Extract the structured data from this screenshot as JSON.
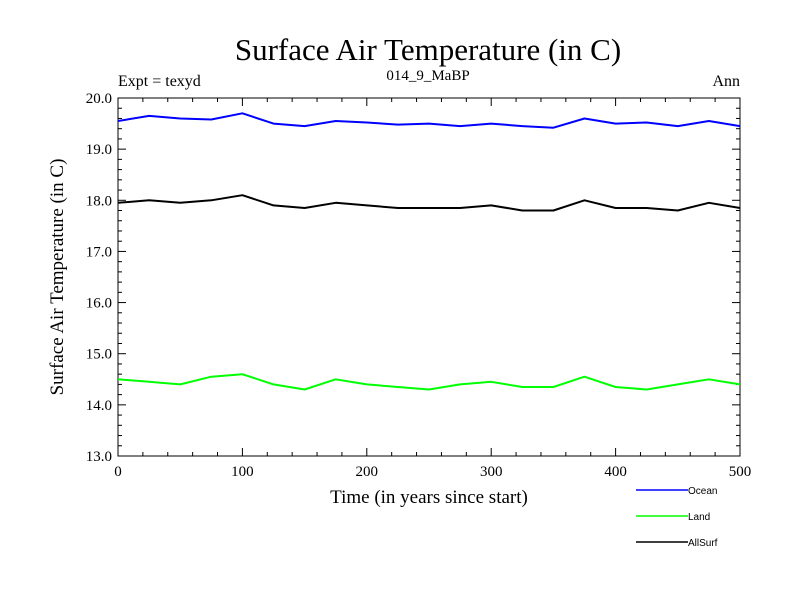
{
  "chart_data": {
    "type": "line",
    "title": "Surface Air Temperature (in C)",
    "subtitle": "014_9_MaBP",
    "experiment_label": "Expt = texyd",
    "season_label": "Ann",
    "xlabel": "Time (in years since start)",
    "ylabel": "Surface Air Temperature (in C)",
    "xlim": [
      0,
      500
    ],
    "ylim": [
      13.0,
      20.0
    ],
    "xticks": [
      0,
      100,
      200,
      300,
      400,
      500
    ],
    "xtick_labels": [
      "0",
      "100",
      "200",
      "300",
      "400",
      "500"
    ],
    "yticks": [
      13.0,
      14.0,
      15.0,
      16.0,
      17.0,
      18.0,
      19.0,
      20.0
    ],
    "ytick_labels": [
      "13.0",
      "14.0",
      "15.0",
      "16.0",
      "17.0",
      "18.0",
      "19.0",
      "20.0"
    ],
    "grid": false,
    "legend_position": "bottom-right",
    "x": [
      0,
      25,
      50,
      75,
      100,
      125,
      150,
      175,
      200,
      225,
      250,
      275,
      300,
      325,
      350,
      375,
      400,
      425,
      450,
      475,
      500
    ],
    "series": [
      {
        "name": "Ocean",
        "color": "#0000ff",
        "values": [
          19.55,
          19.65,
          19.6,
          19.58,
          19.7,
          19.5,
          19.45,
          19.55,
          19.52,
          19.48,
          19.5,
          19.45,
          19.5,
          19.45,
          19.42,
          19.6,
          19.5,
          19.52,
          19.45,
          19.55,
          19.45
        ]
      },
      {
        "name": "Land",
        "color": "#00ff00",
        "values": [
          14.5,
          14.45,
          14.4,
          14.55,
          14.6,
          14.4,
          14.3,
          14.5,
          14.4,
          14.35,
          14.3,
          14.4,
          14.45,
          14.35,
          14.35,
          14.55,
          14.35,
          14.3,
          14.4,
          14.5,
          14.4
        ]
      },
      {
        "name": "AllSurf",
        "color": "#000000",
        "values": [
          17.95,
          18.0,
          17.95,
          18.0,
          18.1,
          17.9,
          17.85,
          17.95,
          17.9,
          17.85,
          17.85,
          17.85,
          17.9,
          17.8,
          17.8,
          18.0,
          17.85,
          17.85,
          17.8,
          17.95,
          17.85
        ]
      }
    ]
  }
}
